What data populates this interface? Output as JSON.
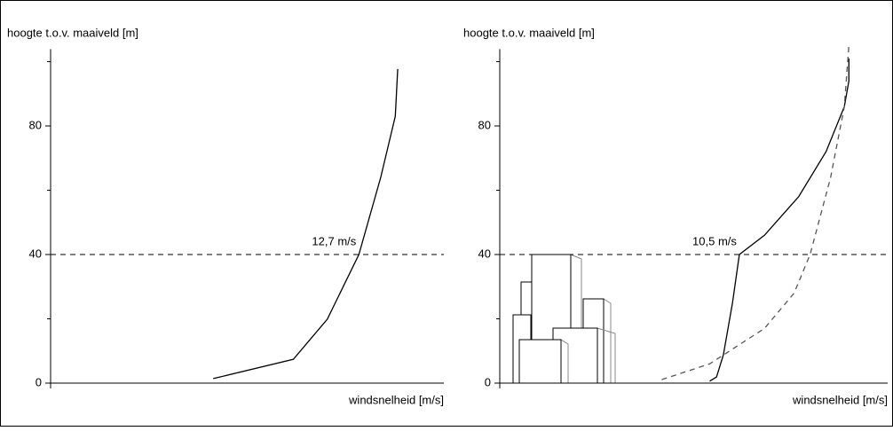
{
  "chart_data": [
    {
      "type": "line",
      "y_label": "hoogte t.o.v. maaiveld [m]",
      "x_label": "windsnelheid [m/s]",
      "xlim": [
        0,
        16.2
      ],
      "ylim": [
        0,
        105
      ],
      "yticks": [
        0,
        40,
        80
      ],
      "minor_yticks": [
        20,
        60,
        100
      ],
      "reference_y": 40,
      "annotation": {
        "text": "12,7 m/s",
        "x": 12.7,
        "y": 40
      },
      "series": [
        {
          "color": "#000000",
          "dash": false,
          "x": [
            6.7,
            10.0,
            11.4,
            12.7,
            13.6,
            14.2,
            14.3
          ],
          "values": [
            1.4,
            7.4,
            19.9,
            40,
            64,
            83,
            97.7
          ]
        }
      ]
    },
    {
      "type": "line",
      "y_label": "hoogte t.o.v. maaiveld [m]",
      "x_label": "windsnelheid [m/s]",
      "xlim": [
        0,
        17
      ],
      "ylim": [
        0,
        105
      ],
      "yticks": [
        0,
        40,
        80
      ],
      "minor_yticks": [
        20,
        60,
        100
      ],
      "reference_y": 40,
      "annotation": {
        "text": "10,5 m/s",
        "x": 10.5,
        "y": 40
      },
      "series": [
        {
          "color": "#000000",
          "dash": false,
          "x": [
            9.2,
            9.5,
            9.8,
            10.2,
            10.5,
            11.6,
            13.1,
            14.3,
            15.1,
            15.3,
            15.3
          ],
          "values": [
            0.6,
            1.9,
            8.8,
            25,
            40,
            46,
            58,
            72,
            86,
            94,
            101
          ]
        },
        {
          "color": "#555555",
          "dash": true,
          "x": [
            7.1,
            9.2,
            11.6,
            12.9,
            13.6,
            14.5,
            15.1,
            15.3
          ],
          "values": [
            1.1,
            6,
            17,
            28,
            40,
            64,
            86,
            105
          ]
        }
      ]
    }
  ]
}
